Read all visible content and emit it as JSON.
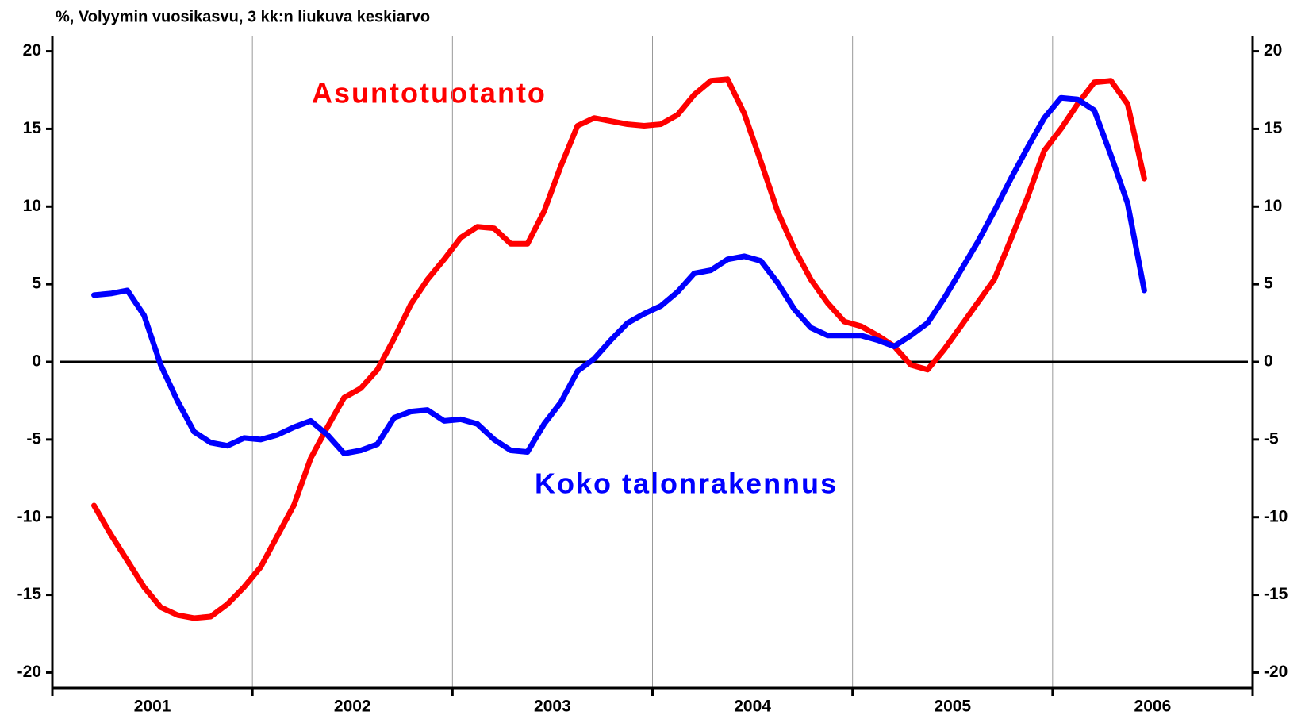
{
  "chart_data": {
    "type": "line",
    "title": "%, Volyymin vuosikasvu, 3 kk:n liukuva keskiarvo",
    "x": [
      2001.2083,
      2001.2917,
      2001.375,
      2001.4583,
      2001.5417,
      2001.625,
      2001.7083,
      2001.7917,
      2001.875,
      2001.9583,
      2002.0417,
      2002.125,
      2002.2083,
      2002.2917,
      2002.375,
      2002.4583,
      2002.5417,
      2002.625,
      2002.7083,
      2002.7917,
      2002.875,
      2002.9583,
      2003.0417,
      2003.125,
      2003.2083,
      2003.2917,
      2003.375,
      2003.4583,
      2003.5417,
      2003.625,
      2003.7083,
      2003.7917,
      2003.875,
      2003.9583,
      2004.0417,
      2004.125,
      2004.2083,
      2004.2917,
      2004.375,
      2004.4583,
      2004.5417,
      2004.625,
      2004.7083,
      2004.7917,
      2004.875,
      2004.9583,
      2005.0417,
      2005.125,
      2005.2083,
      2005.2917,
      2005.375,
      2005.4583,
      2005.5417,
      2005.625,
      2005.7083,
      2005.7917,
      2005.875,
      2005.9583,
      2006.0417,
      2006.125,
      2006.2083,
      2006.2917,
      2006.375,
      2006.4583
    ],
    "series": [
      {
        "name": "Asuntotuotanto",
        "color": "#ff0000",
        "values": [
          -9.25,
          -11.1,
          -12.8,
          -14.5,
          -15.8,
          -16.3,
          -16.5,
          -16.4,
          -15.6,
          -14.5,
          -13.2,
          -11.2,
          -9.2,
          -6.2,
          -4.2,
          -2.3,
          -1.7,
          -0.5,
          1.5,
          3.7,
          5.3,
          6.6,
          8.0,
          8.7,
          8.6,
          7.6,
          7.6,
          9.7,
          12.6,
          15.2,
          15.7,
          15.5,
          15.3,
          15.2,
          15.3,
          15.9,
          17.2,
          18.1,
          18.2,
          16.0,
          12.9,
          9.7,
          7.3,
          5.3,
          3.8,
          2.6,
          2.3,
          1.7,
          1.0,
          -0.2,
          -0.5,
          0.8,
          2.3,
          3.8,
          5.3,
          7.9,
          10.6,
          13.6,
          15.0,
          16.6,
          18.0,
          18.1,
          16.6,
          11.8
        ]
      },
      {
        "name": "Koko talonrakennus",
        "color": "#0000ff",
        "values": [
          4.3,
          4.4,
          4.6,
          3.0,
          -0.2,
          -2.5,
          -4.5,
          -5.2,
          -5.4,
          -4.9,
          -5.0,
          -4.7,
          -4.2,
          -3.8,
          -4.7,
          -5.9,
          -5.7,
          -5.3,
          -3.6,
          -3.2,
          -3.1,
          -3.8,
          -3.7,
          -4.0,
          -5.0,
          -5.7,
          -5.8,
          -4.0,
          -2.6,
          -0.6,
          0.2,
          1.4,
          2.5,
          3.1,
          3.6,
          4.5,
          5.7,
          5.9,
          6.6,
          6.8,
          6.5,
          5.1,
          3.4,
          2.2,
          1.7,
          1.7,
          1.7,
          1.4,
          1.0,
          1.7,
          2.5,
          4.1,
          5.9,
          7.7,
          9.7,
          11.8,
          13.8,
          15.7,
          17.0,
          16.9,
          16.2,
          13.3,
          10.2,
          4.6
        ]
      }
    ],
    "xlim": [
      2001,
      2007
    ],
    "xgrid": [
      2001,
      2002,
      2003,
      2004,
      2005,
      2006,
      2007
    ],
    "xticks": [
      {
        "value": 2001.5,
        "label": "2001"
      },
      {
        "value": 2002.5,
        "label": "2002"
      },
      {
        "value": 2003.5,
        "label": "2003"
      },
      {
        "value": 2004.5,
        "label": "2004"
      },
      {
        "value": 2005.5,
        "label": "2005"
      },
      {
        "value": 2006.5,
        "label": "2006"
      }
    ],
    "ylim": [
      -21,
      21
    ],
    "yticks": [
      -20,
      -15,
      -10,
      -5,
      0,
      5,
      10,
      15,
      20
    ],
    "y2lim": [
      -21,
      21
    ],
    "y2ticks": [
      -20,
      -15,
      -10,
      -5,
      0,
      5,
      10,
      15,
      20
    ],
    "grid": "x"
  }
}
